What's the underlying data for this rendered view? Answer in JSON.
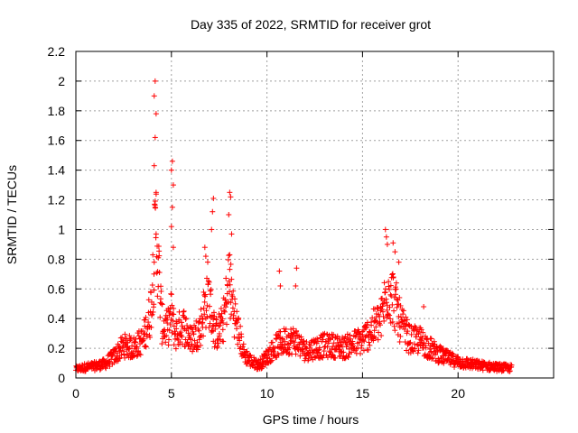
{
  "chart_data": {
    "type": "scatter",
    "title": "Day 335 of 2022, SRMTID for receiver grot",
    "xlabel": "GPS time / hours",
    "ylabel": "SRMTID / TECUs",
    "xlim": [
      0,
      25
    ],
    "ylim": [
      0,
      2.2
    ],
    "x_ticks": [
      0,
      5,
      10,
      15,
      20
    ],
    "x_tick_labels": [
      "0",
      "5",
      "10",
      "15",
      "20"
    ],
    "y_ticks": [
      0,
      0.2,
      0.4,
      0.6,
      0.8,
      1,
      1.2,
      1.4,
      1.6,
      1.8,
      2,
      2.2
    ],
    "y_tick_labels": [
      "0",
      "0.2",
      "0.4",
      "0.6",
      "0.8",
      "1",
      "1.2",
      "1.4",
      "1.6",
      "1.8",
      "2",
      "2.2"
    ],
    "grid": true,
    "marker": "plus",
    "color": "#ff0000",
    "series": [
      {
        "name": "SRMTID",
        "envelope": [
          [
            0.0,
            0.08
          ],
          [
            0.5,
            0.1
          ],
          [
            1.0,
            0.11
          ],
          [
            1.5,
            0.13
          ],
          [
            2.0,
            0.2
          ],
          [
            2.5,
            0.3
          ],
          [
            3.0,
            0.28
          ],
          [
            3.5,
            0.35
          ],
          [
            3.9,
            0.6
          ],
          [
            4.2,
            1.4
          ],
          [
            4.5,
            0.5
          ],
          [
            4.8,
            0.45
          ],
          [
            5.0,
            0.6
          ],
          [
            5.2,
            0.4
          ],
          [
            5.6,
            0.5
          ],
          [
            6.0,
            0.35
          ],
          [
            6.5,
            0.45
          ],
          [
            6.9,
            0.8
          ],
          [
            7.3,
            0.4
          ],
          [
            7.7,
            0.5
          ],
          [
            8.0,
            0.9
          ],
          [
            8.4,
            0.5
          ],
          [
            8.8,
            0.22
          ],
          [
            9.2,
            0.15
          ],
          [
            9.6,
            0.12
          ],
          [
            10.0,
            0.2
          ],
          [
            10.5,
            0.3
          ],
          [
            11.0,
            0.35
          ],
          [
            11.5,
            0.35
          ],
          [
            12.0,
            0.25
          ],
          [
            12.5,
            0.28
          ],
          [
            13.0,
            0.3
          ],
          [
            13.5,
            0.3
          ],
          [
            14.0,
            0.28
          ],
          [
            14.5,
            0.32
          ],
          [
            15.0,
            0.35
          ],
          [
            15.5,
            0.45
          ],
          [
            16.0,
            0.55
          ],
          [
            16.3,
            0.85
          ],
          [
            16.6,
            0.75
          ],
          [
            17.0,
            0.5
          ],
          [
            17.5,
            0.35
          ],
          [
            18.0,
            0.35
          ],
          [
            18.5,
            0.28
          ],
          [
            19.0,
            0.22
          ],
          [
            19.5,
            0.18
          ],
          [
            20.0,
            0.15
          ],
          [
            21.0,
            0.12
          ],
          [
            22.0,
            0.1
          ],
          [
            22.8,
            0.09
          ]
        ],
        "spikes": [
          {
            "x": 4.15,
            "y": 2.0
          },
          {
            "x": 4.1,
            "y": 1.9
          },
          {
            "x": 4.2,
            "y": 1.78
          },
          {
            "x": 4.15,
            "y": 1.62
          },
          {
            "x": 4.1,
            "y": 1.43
          },
          {
            "x": 4.2,
            "y": 1.25
          },
          {
            "x": 4.15,
            "y": 1.15
          },
          {
            "x": 4.2,
            "y": 0.97
          },
          {
            "x": 4.1,
            "y": 0.78
          },
          {
            "x": 5.05,
            "y": 1.46
          },
          {
            "x": 5.0,
            "y": 1.4
          },
          {
            "x": 5.1,
            "y": 1.3
          },
          {
            "x": 5.05,
            "y": 1.15
          },
          {
            "x": 5.0,
            "y": 1.02
          },
          {
            "x": 5.1,
            "y": 0.88
          },
          {
            "x": 7.2,
            "y": 1.21
          },
          {
            "x": 7.15,
            "y": 1.12
          },
          {
            "x": 7.1,
            "y": 1.0
          },
          {
            "x": 6.75,
            "y": 0.88
          },
          {
            "x": 6.8,
            "y": 0.82
          },
          {
            "x": 8.05,
            "y": 1.25
          },
          {
            "x": 8.1,
            "y": 1.22
          },
          {
            "x": 8.0,
            "y": 1.1
          },
          {
            "x": 8.15,
            "y": 0.97
          },
          {
            "x": 8.05,
            "y": 0.83
          },
          {
            "x": 10.65,
            "y": 0.72
          },
          {
            "x": 10.7,
            "y": 0.62
          },
          {
            "x": 11.55,
            "y": 0.74
          },
          {
            "x": 11.5,
            "y": 0.62
          },
          {
            "x": 16.2,
            "y": 1.0
          },
          {
            "x": 16.25,
            "y": 0.95
          },
          {
            "x": 16.3,
            "y": 0.9
          },
          {
            "x": 16.6,
            "y": 0.91
          },
          {
            "x": 16.7,
            "y": 0.85
          },
          {
            "x": 16.9,
            "y": 0.78
          },
          {
            "x": 18.2,
            "y": 0.48
          }
        ]
      }
    ]
  }
}
